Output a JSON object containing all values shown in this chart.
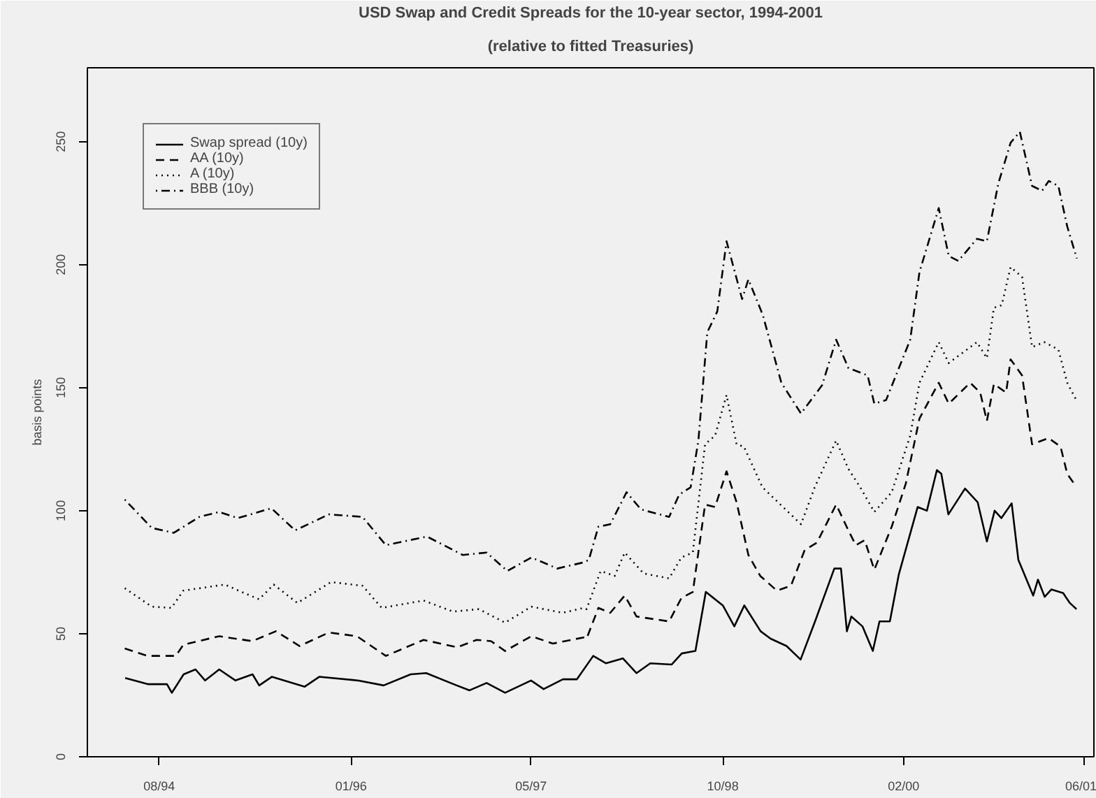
{
  "chart_data": {
    "type": "line",
    "title": "USD Swap and Credit Spreads for the 10-year sector, 1994-2001",
    "subtitle": "(relative to fitted Treasuries)",
    "ylabel": "basis points",
    "xlim": [
      "1994-01-28",
      "2001-07-08"
    ],
    "ylim": [
      0,
      280
    ],
    "xticks": [
      {
        "value": "1994-08-10",
        "label": "08/94"
      },
      {
        "value": "1996-01-10",
        "label": "01/96"
      },
      {
        "value": "1997-05-10",
        "label": "05/97"
      },
      {
        "value": "1998-10-10",
        "label": "10/98"
      },
      {
        "value": "2000-02-10",
        "label": "02/00"
      },
      {
        "value": "2001-06-10",
        "label": "06/01"
      }
    ],
    "yticks": [
      0,
      50,
      100,
      150,
      200,
      250
    ],
    "grid": false,
    "legend": "top left",
    "marker": "none",
    "series": [
      {
        "name": "Swap spread (10y)",
        "color": "#000000",
        "line_style": "solid",
        "x": [
          "1994-05-10",
          "1994-07-10",
          "1994-08-31",
          "1994-09-13",
          "1994-10-15",
          "1994-11-16",
          "1994-12-12",
          "1995-01-19",
          "1995-03-04",
          "1995-04-19",
          "1995-05-07",
          "1995-06-10",
          "1995-09-07",
          "1995-10-16",
          "1996-01-28",
          "1996-04-07",
          "1996-06-19",
          "1996-07-31",
          "1996-10-13",
          "1996-11-25",
          "1997-01-10",
          "1997-03-01",
          "1997-05-10",
          "1997-06-13",
          "1997-08-04",
          "1997-09-11",
          "1997-10-25",
          "1997-11-28",
          "1998-01-13",
          "1998-02-19",
          "1998-03-28",
          "1998-05-25",
          "1998-06-21",
          "1998-07-28",
          "1998-08-25",
          "1998-10-10",
          "1998-11-10",
          "1998-12-07",
          "1999-01-20",
          "1999-02-16",
          "1999-03-31",
          "1999-05-08",
          "1999-06-16",
          "1999-08-07",
          "1999-08-25",
          "1999-09-10",
          "1999-09-22",
          "1999-10-22",
          "1999-11-19",
          "1999-12-07",
          "2000-01-04",
          "2000-01-28",
          "2000-03-19",
          "2000-04-13",
          "2000-05-10",
          "2000-05-22",
          "2000-06-10",
          "2000-07-25",
          "2000-08-28",
          "2000-09-22",
          "2000-10-13",
          "2000-10-31",
          "2000-11-28",
          "2000-12-16",
          "2001-01-25",
          "2001-02-07",
          "2001-02-25",
          "2001-03-15",
          "2001-04-16",
          "2001-05-04",
          "2001-05-22"
        ],
        "values": [
          32,
          29.5,
          29.5,
          26,
          33.5,
          35.5,
          31,
          35.5,
          31,
          33.5,
          29,
          32.5,
          28.5,
          32.5,
          31,
          29,
          33.5,
          34,
          29.5,
          27,
          30,
          26,
          31,
          27.5,
          31.5,
          31.5,
          41,
          38,
          40,
          34,
          38,
          37.5,
          42,
          43,
          67,
          61.5,
          53,
          61.5,
          51,
          48,
          45,
          39.5,
          55,
          76.5,
          76.5,
          51,
          57,
          53,
          43,
          55,
          55,
          74,
          101.5,
          100,
          116.5,
          115,
          98.5,
          109,
          103.5,
          87.5,
          100,
          97,
          103,
          80,
          65.5,
          72,
          65,
          68,
          66.5,
          62.5,
          60
        ]
      },
      {
        "name": "AA (10y)",
        "color": "#000000",
        "line_style": "dashed",
        "x": [
          "1994-05-09",
          "1994-07-09",
          "1994-09-24",
          "1994-10-14",
          "1995-01-19",
          "1995-04-18",
          "1995-06-21",
          "1995-08-24",
          "1995-11-11",
          "1996-01-26",
          "1996-04-13",
          "1996-07-24",
          "1996-10-23",
          "1996-12-14",
          "1997-01-22",
          "1997-03-01",
          "1997-05-11",
          "1997-07-08",
          "1997-09-29",
          "1997-10-07",
          "1997-11-08",
          "1997-12-10",
          "1998-01-18",
          "1998-02-19",
          "1998-05-18",
          "1998-06-20",
          "1998-07-21",
          "1998-08-23",
          "1998-09-19",
          "1998-10-20",
          "1998-11-16",
          "1998-12-18",
          "1999-01-19",
          "1999-03-05",
          "1999-04-12",
          "1999-05-19",
          "1999-06-21",
          "1999-08-12",
          "1999-09-14",
          "1999-10-04",
          "1999-10-28",
          "1999-11-23",
          "2000-01-09",
          "2000-02-16",
          "2000-03-24",
          "2000-05-15",
          "2000-06-11",
          "2000-08-08",
          "2000-09-04",
          "2000-09-22",
          "2000-10-11",
          "2000-11-13",
          "2000-11-25",
          "2000-12-26",
          "2001-01-22",
          "2001-03-08",
          "2001-04-09",
          "2001-04-27",
          "2001-05-20"
        ],
        "values": [
          44,
          41,
          41,
          45.5,
          49,
          47,
          51,
          45,
          50.5,
          49,
          41,
          47.5,
          44.5,
          47.5,
          47,
          43,
          49,
          46,
          48.5,
          48,
          60.5,
          58.5,
          65.5,
          57,
          55,
          64.5,
          67,
          102.5,
          101.5,
          116,
          103.5,
          82,
          73.5,
          67.5,
          69.5,
          84,
          87,
          102.5,
          92,
          86,
          88,
          76,
          93.5,
          111,
          137.5,
          152,
          143.5,
          152,
          148,
          136.5,
          151.5,
          148,
          161.5,
          155,
          127,
          129.5,
          126,
          115,
          110
        ]
      },
      {
        "name": "A (10y)",
        "color": "#000000",
        "line_style": "dotted",
        "x": [
          "1994-05-09",
          "1994-07-21",
          "1994-09-12",
          "1994-10-14",
          "1995-02-03",
          "1995-03-28",
          "1995-05-07",
          "1995-06-15",
          "1995-08-18",
          "1995-11-17",
          "1996-02-10",
          "1996-04-02",
          "1996-07-24",
          "1996-10-11",
          "1996-12-20",
          "1997-03-01",
          "1997-05-11",
          "1997-08-04",
          "1997-09-29",
          "1997-10-07",
          "1997-11-14",
          "1997-12-22",
          "1998-01-18",
          "1998-03-10",
          "1998-05-18",
          "1998-06-20",
          "1998-07-21",
          "1998-08-23",
          "1998-09-19",
          "1998-10-20",
          "1998-11-16",
          "1998-12-06",
          "1999-01-25",
          "1999-05-09",
          "1999-06-15",
          "1999-08-12",
          "1999-09-14",
          "1999-10-16",
          "1999-11-23",
          "2000-01-09",
          "2000-02-28",
          "2000-03-24",
          "2000-05-15",
          "2000-06-11",
          "2000-08-26",
          "2000-09-22",
          "2000-10-11",
          "2000-11-01",
          "2000-11-25",
          "2000-12-26",
          "2001-01-22",
          "2001-02-24",
          "2001-04-03",
          "2001-04-27",
          "2001-05-23"
        ],
        "values": [
          68.5,
          61,
          60.5,
          67.5,
          70,
          66.5,
          64,
          70,
          62.5,
          71,
          69.5,
          60.5,
          63.5,
          59,
          60,
          54.5,
          61,
          58.5,
          60.5,
          60,
          75.5,
          73.5,
          83,
          74.5,
          72.5,
          81,
          83,
          127,
          130.5,
          147,
          127,
          126,
          109.5,
          94.5,
          109.5,
          128.5,
          117,
          109.5,
          99.5,
          107.5,
          130.5,
          152,
          168.5,
          160,
          168.5,
          162,
          182.5,
          183.5,
          199,
          195,
          166.5,
          168.5,
          165.5,
          152,
          144.5
        ]
      },
      {
        "name": "BBB (10y)",
        "color": "#000000",
        "line_style": "dashdot",
        "x": [
          "1994-05-09",
          "1994-07-21",
          "1994-09-18",
          "1994-11-27",
          "1995-01-19",
          "1995-03-10",
          "1995-06-09",
          "1995-08-12",
          "1995-11-11",
          "1996-02-10",
          "1996-04-13",
          "1996-08-02",
          "1996-11-07",
          "1997-01-10",
          "1997-03-07",
          "1997-05-11",
          "1997-07-20",
          "1997-09-29",
          "1997-10-13",
          "1997-11-08",
          "1997-12-10",
          "1998-01-23",
          "1998-03-03",
          "1998-05-18",
          "1998-06-14",
          "1998-07-15",
          "1998-08-05",
          "1998-08-29",
          "1998-09-25",
          "1998-10-20",
          "1998-12-01",
          "1998-12-18",
          "1999-01-26",
          "1999-03-17",
          "1999-05-09",
          "1999-07-05",
          "1999-08-12",
          "1999-09-14",
          "1999-11-05",
          "1999-11-23",
          "1999-12-25",
          "2000-02-28",
          "2000-03-24",
          "2000-05-15",
          "2000-06-11",
          "2000-07-07",
          "2000-08-26",
          "2000-09-22",
          "2000-10-23",
          "2000-11-25",
          "2000-12-20",
          "2001-01-22",
          "2001-02-18",
          "2001-03-08",
          "2001-04-03",
          "2001-04-27",
          "2001-05-23"
        ],
        "values": [
          104.5,
          93,
          91,
          97.5,
          99.5,
          97,
          101,
          92,
          98.5,
          97.5,
          86,
          89.5,
          82,
          83,
          75.5,
          81,
          76.5,
          79,
          80,
          93.5,
          94.5,
          107.5,
          100.5,
          97.5,
          106.5,
          109.5,
          128.5,
          172.5,
          181,
          209.5,
          186,
          194,
          179.5,
          152,
          139.5,
          151,
          169.5,
          158,
          155,
          143.5,
          145,
          169.5,
          197,
          223,
          203.5,
          201.5,
          210.5,
          209.5,
          233,
          249.5,
          254,
          232,
          230,
          234,
          232,
          215.5,
          202.5
        ]
      }
    ]
  }
}
